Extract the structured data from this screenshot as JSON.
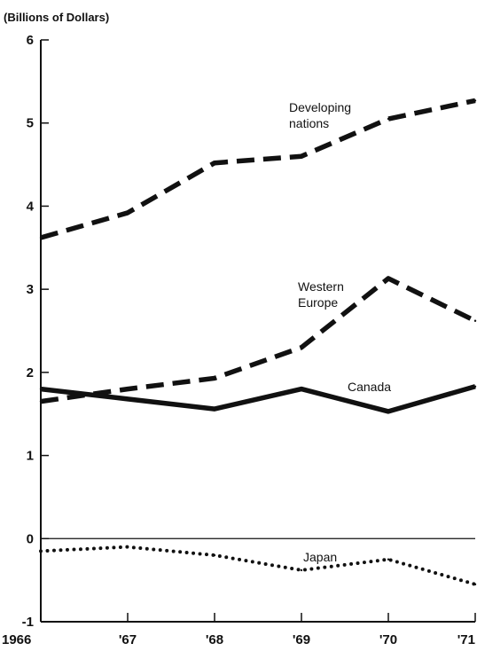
{
  "chart_data": {
    "type": "line",
    "ylabel": "(Billions of Dollars)",
    "xlabel": "",
    "x": [
      "1966",
      "'67",
      "'68",
      "'69",
      "'70",
      "'71"
    ],
    "ylim": [
      -1,
      6
    ],
    "yticks": [
      -1,
      0,
      1,
      2,
      3,
      4,
      5,
      6
    ],
    "series": [
      {
        "name": "Developing nations",
        "line": [
          "Developing",
          "nations"
        ],
        "style": "dashed",
        "values": [
          3.62,
          3.92,
          4.52,
          4.6,
          5.05,
          5.27
        ]
      },
      {
        "name": "Western Europe",
        "line": [
          "Western",
          "Europe"
        ],
        "style": "dashed",
        "values": [
          1.65,
          1.8,
          1.93,
          2.3,
          3.13,
          2.62
        ]
      },
      {
        "name": "Canada",
        "line": [
          "Canada"
        ],
        "style": "solid",
        "values": [
          1.8,
          1.68,
          1.56,
          1.8,
          1.53,
          1.83
        ]
      },
      {
        "name": "Japan",
        "line": [
          "Japan"
        ],
        "style": "dotted",
        "values": [
          -0.15,
          -0.1,
          -0.2,
          -0.38,
          -0.25,
          -0.55
        ]
      }
    ],
    "grid": false
  }
}
